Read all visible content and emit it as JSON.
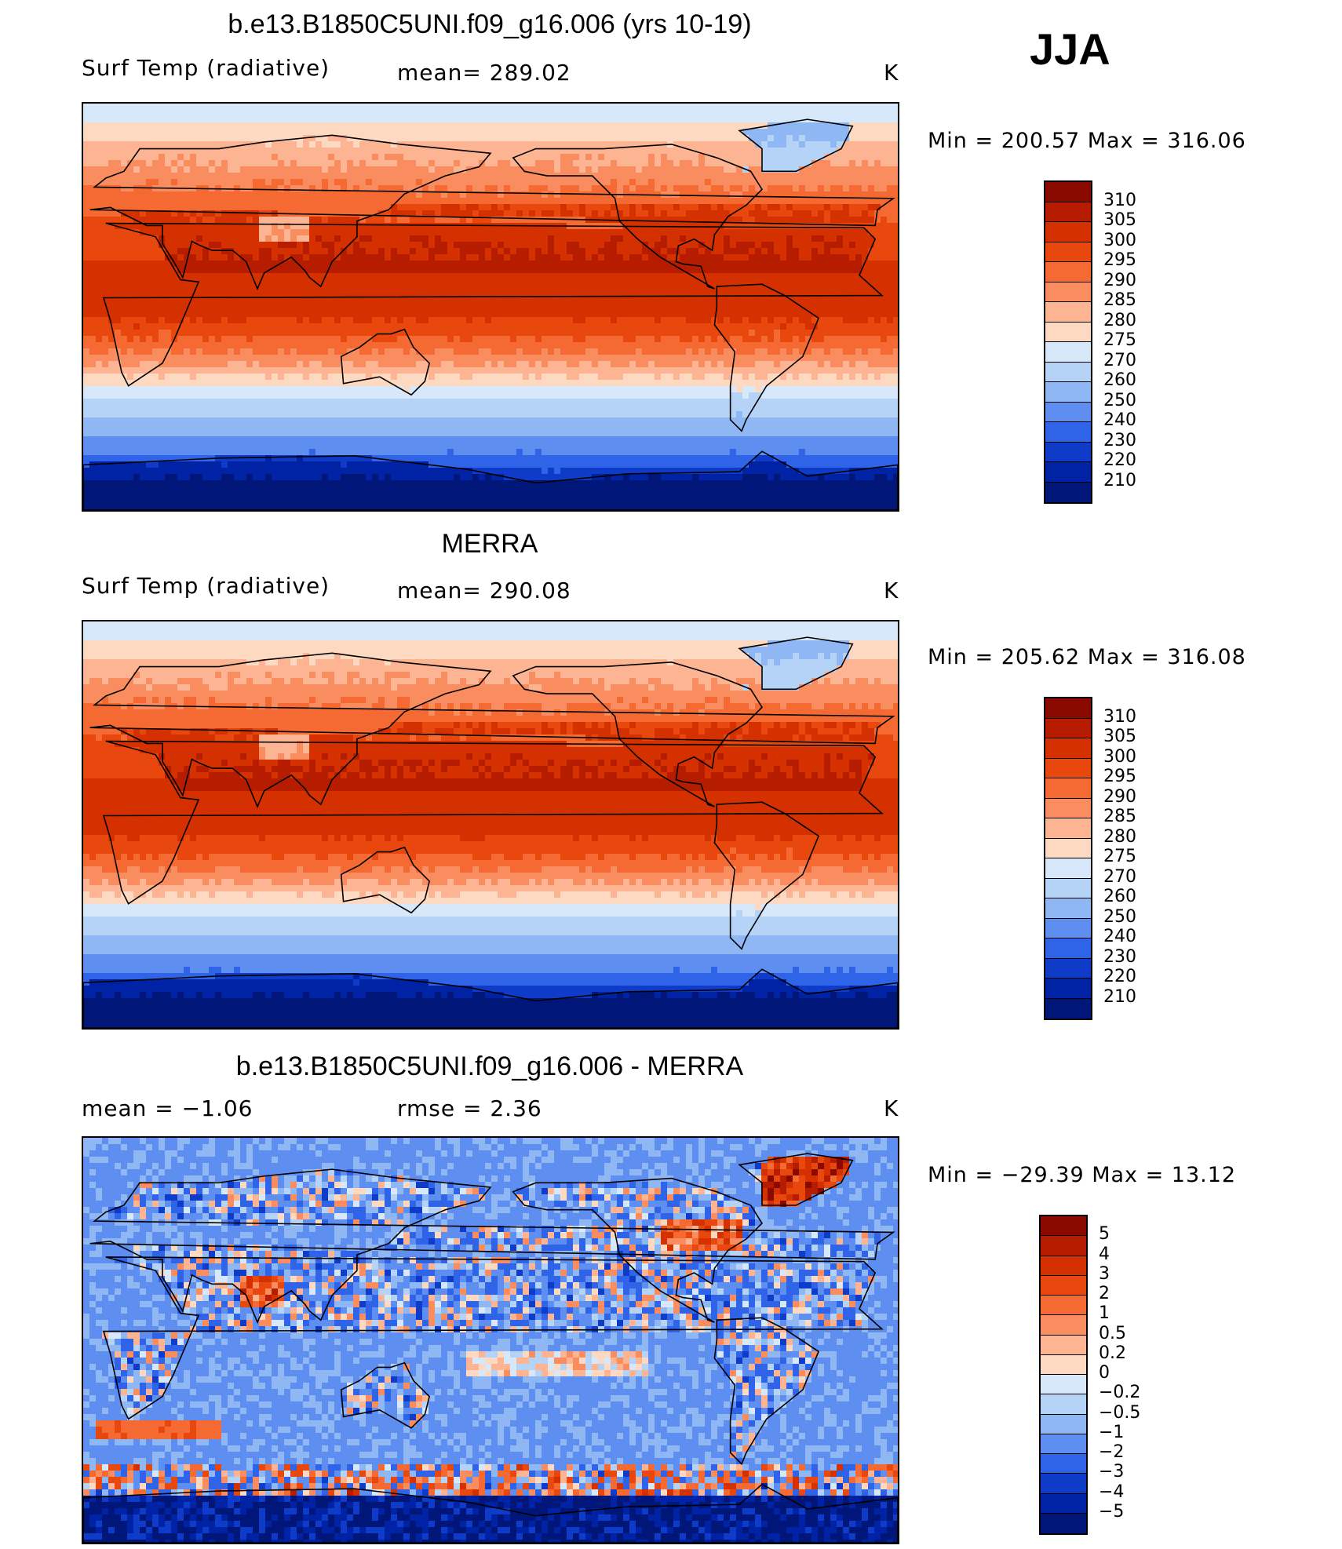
{
  "season": "JJA",
  "units": "K",
  "panels": [
    {
      "id": "model",
      "title": "b.e13.B1850C5UNI.f09_g16.006 (yrs 10-19)",
      "left_label": "Surf Temp (radiative)",
      "stat_label": "mean=  289.02",
      "units": "K",
      "min_max": "Min  =  200.57  Max  =  316.06",
      "levels": [
        "310",
        "305",
        "300",
        "295",
        "290",
        "285",
        "280",
        "275",
        "270",
        "260",
        "250",
        "240",
        "230",
        "220",
        "210"
      ],
      "colors": [
        "#8b0a00",
        "#b51c00",
        "#d43000",
        "#e8480e",
        "#f46a32",
        "#f98d5f",
        "#fcb493",
        "#fdd9c2",
        "#d6e8f9",
        "#b5d3f6",
        "#8fb7f3",
        "#5e8ef0",
        "#2f63e8",
        "#0e3cc9",
        "#0022a4",
        "#001678"
      ],
      "field": "temperature"
    },
    {
      "id": "obs",
      "title": "MERRA",
      "left_label": "Surf Temp (radiative)",
      "stat_label": "mean=  290.08",
      "units": "K",
      "min_max": "Min  =  205.62  Max  =  316.08",
      "levels": [
        "310",
        "305",
        "300",
        "295",
        "290",
        "285",
        "280",
        "275",
        "270",
        "260",
        "250",
        "240",
        "230",
        "220",
        "210"
      ],
      "colors": [
        "#8b0a00",
        "#b51c00",
        "#d43000",
        "#e8480e",
        "#f46a32",
        "#f98d5f",
        "#fcb493",
        "#fdd9c2",
        "#d6e8f9",
        "#b5d3f6",
        "#8fb7f3",
        "#5e8ef0",
        "#2f63e8",
        "#0e3cc9",
        "#0022a4",
        "#001678"
      ],
      "field": "temperature"
    },
    {
      "id": "diff",
      "title": "b.e13.B1850C5UNI.f09_g16.006 - MERRA",
      "left_label": "mean =    −1.06",
      "stat_label": "rmse =     2.36",
      "units": "K",
      "min_max": "Min  =  −29.39  Max  =    13.12",
      "levels": [
        "5",
        "4",
        "3",
        "2",
        "1",
        "0.5",
        "0.2",
        "0",
        "−0.2",
        "−0.5",
        "−1",
        "−2",
        "−3",
        "−4",
        "−5"
      ],
      "colors": [
        "#8b0a00",
        "#b51c00",
        "#d43000",
        "#e8480e",
        "#f46a32",
        "#f98d5f",
        "#fcb493",
        "#fdd9c2",
        "#d6e8f9",
        "#b5d3f6",
        "#8fb7f3",
        "#5e8ef0",
        "#2f63e8",
        "#0e3cc9",
        "#0022a4",
        "#001678"
      ],
      "field": "difference"
    }
  ]
}
